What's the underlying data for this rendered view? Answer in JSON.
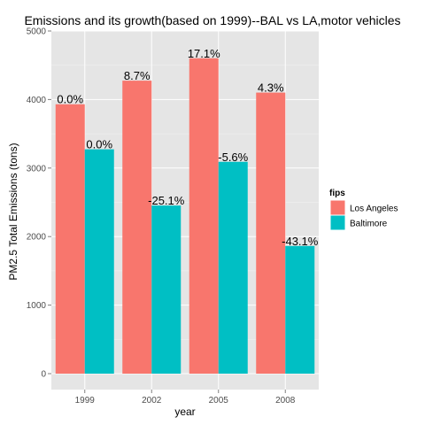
{
  "chart_data": {
    "type": "bar",
    "title": "Emissions and its growth(based on 1999)--BAL vs LA,motor vehicles",
    "xlabel": "year",
    "ylabel": "PM2.5 Total Emissions (tons)",
    "categories": [
      "1999",
      "2002",
      "2005",
      "2008"
    ],
    "ylim": [
      0,
      5000
    ],
    "yticks": [
      0,
      1000,
      2000,
      3000,
      4000,
      5000
    ],
    "grid": true,
    "legend": {
      "title": "fips",
      "placement": "right"
    },
    "series": [
      {
        "name": "Los Angeles",
        "color": "#F8766D",
        "values": [
          3931,
          4275,
          4602,
          4101
        ],
        "labels": [
          "0.0%",
          "8.7%",
          "17.1%",
          "4.3%"
        ]
      },
      {
        "name": "Baltimore",
        "color": "#00BFC4",
        "values": [
          3274,
          2453,
          3091,
          1863
        ],
        "labels": [
          "0.0%",
          "-25.1%",
          "-5.6%",
          "-43.1%"
        ]
      }
    ]
  }
}
